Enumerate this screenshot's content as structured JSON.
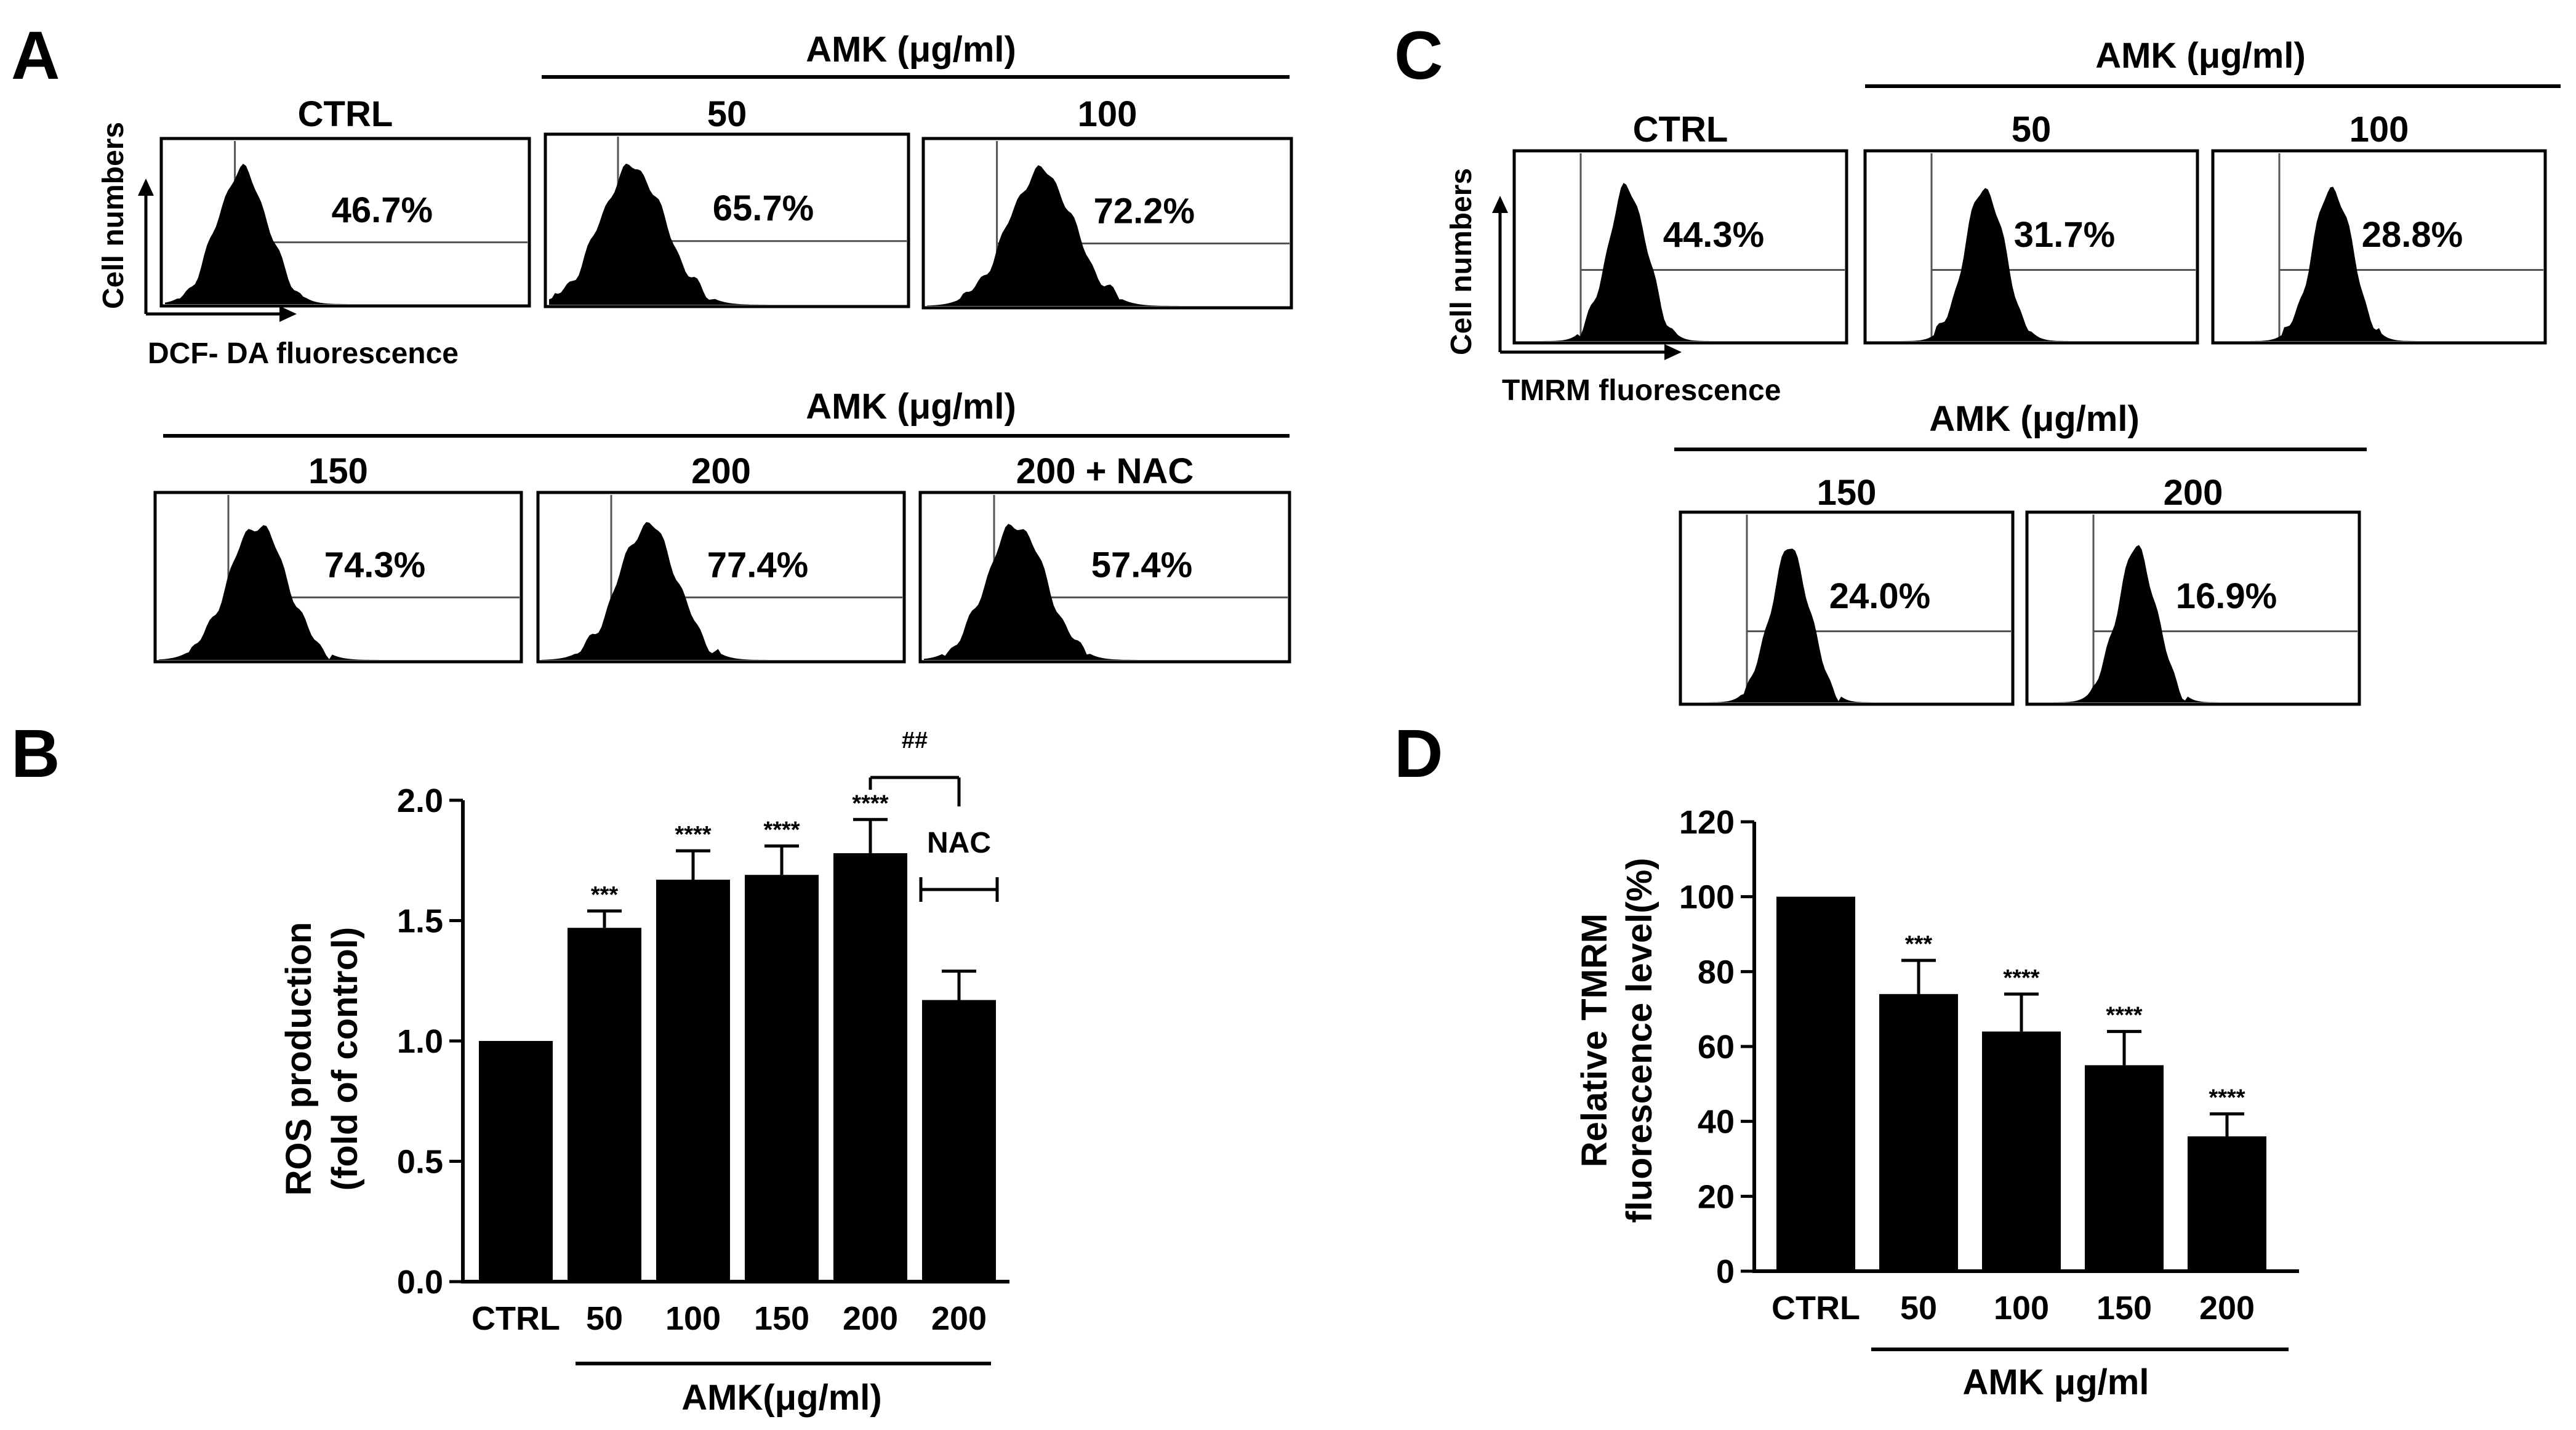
{
  "panels": {
    "A": {
      "letter": "A",
      "group_header_top": "AMK (μg/ml)",
      "group_header_bottom": "AMK (μg/ml)",
      "y_axis_label": "Cell numbers",
      "x_axis_label": "DCF- DA fluorescence",
      "histograms": [
        {
          "label": "CTRL",
          "percent": "46.7%"
        },
        {
          "label": "50",
          "percent": "65.7%"
        },
        {
          "label": "100",
          "percent": "72.2%"
        },
        {
          "label": "150",
          "percent": "74.3%"
        },
        {
          "label": "200",
          "percent": "77.4%"
        },
        {
          "label": "200 + NAC",
          "percent": "57.4%"
        }
      ]
    },
    "C": {
      "letter": "C",
      "group_header_top": "AMK (μg/ml)",
      "group_header_bottom": "AMK (μg/ml)",
      "y_axis_label": "Cell numbers",
      "x_axis_label": "TMRM fluorescence",
      "histograms": [
        {
          "label": "CTRL",
          "percent": "44.3%"
        },
        {
          "label": "50",
          "percent": "31.7%"
        },
        {
          "label": "100",
          "percent": "28.8%"
        },
        {
          "label": "150",
          "percent": "24.0%"
        },
        {
          "label": "200",
          "percent": "16.9%"
        }
      ]
    },
    "B": {
      "letter": "B"
    },
    "D": {
      "letter": "D"
    }
  },
  "chart_data": [
    {
      "id": "B",
      "type": "bar",
      "ylabel_line1": "ROS production",
      "ylabel_line2": "(fold of control)",
      "xlabel": "AMK(μg/ml)",
      "categories": [
        "CTRL",
        "50",
        "100",
        "150",
        "200",
        "200"
      ],
      "values": [
        1.0,
        1.47,
        1.67,
        1.69,
        1.78,
        1.17
      ],
      "errors": [
        0,
        0.07,
        0.12,
        0.12,
        0.14,
        0.12
      ],
      "significance": [
        "",
        "***",
        "****",
        "****",
        "****",
        ""
      ],
      "yticks": [
        "0.0",
        "0.5",
        "1.0",
        "1.5",
        "2.0"
      ],
      "ylim": [
        0,
        2.0
      ],
      "bracket_label": "##",
      "nac_label": "NAC"
    },
    {
      "id": "D",
      "type": "bar",
      "ylabel_line1": "Relative TMRM",
      "ylabel_line2": "fluorescence level(%)",
      "xlabel": "AMK μg/ml",
      "categories": [
        "CTRL",
        "50",
        "100",
        "150",
        "200"
      ],
      "values": [
        100,
        74,
        64,
        55,
        36
      ],
      "errors": [
        0,
        9,
        10,
        9,
        6
      ],
      "significance": [
        "",
        "***",
        "****",
        "****",
        "****"
      ],
      "yticks": [
        "0",
        "20",
        "40",
        "60",
        "80",
        "100",
        "120"
      ],
      "ylim": [
        0,
        120
      ]
    }
  ]
}
